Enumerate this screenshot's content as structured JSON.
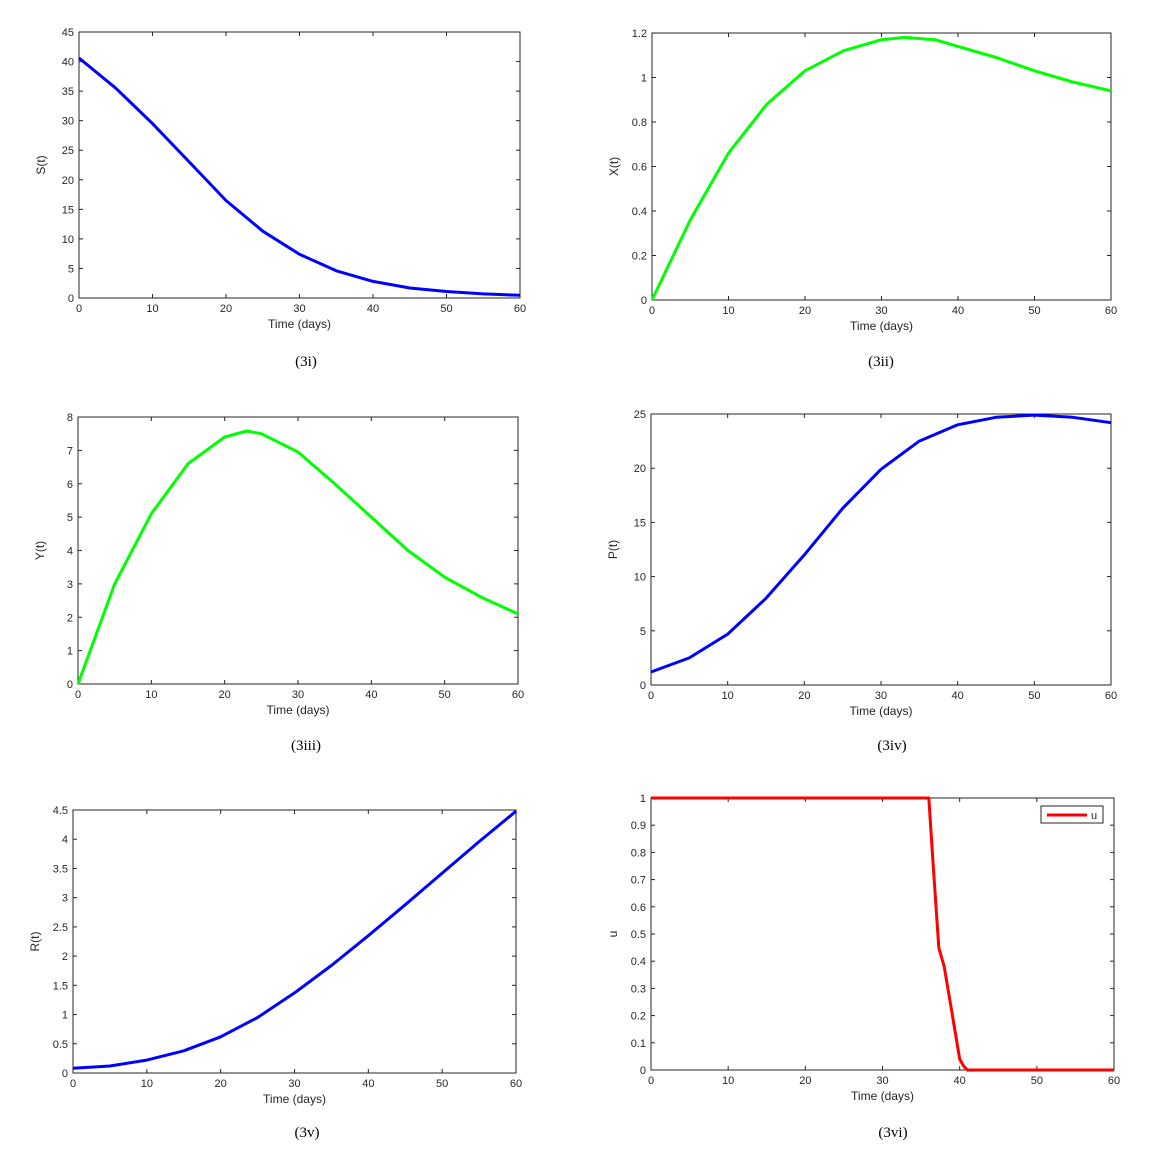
{
  "chart_data": [
    {
      "type": "line",
      "caption": "(3i)",
      "xlabel": "Time (days)",
      "ylabel": "S(t)",
      "xlim": [
        0,
        60
      ],
      "ylim": [
        0,
        45
      ],
      "xticks": [
        0,
        10,
        20,
        30,
        40,
        50,
        60
      ],
      "yticks": [
        0,
        5,
        10,
        15,
        20,
        25,
        30,
        35,
        40,
        45
      ],
      "grid": false,
      "series": [
        {
          "color": "#0000ff",
          "x": [
            0,
            5,
            10,
            15,
            20,
            25,
            30,
            35,
            40,
            45,
            50,
            55,
            60
          ],
          "y": [
            40.6,
            35.5,
            29.5,
            23.0,
            16.5,
            11.3,
            7.4,
            4.6,
            2.8,
            1.7,
            1.1,
            0.7,
            0.45
          ]
        }
      ]
    },
    {
      "type": "line",
      "caption": "(3ii)",
      "xlabel": "Time (days)",
      "ylabel": "X(t)",
      "xlim": [
        0,
        60
      ],
      "ylim": [
        0,
        1.2
      ],
      "xticks": [
        0,
        10,
        20,
        30,
        40,
        50,
        60
      ],
      "yticks": [
        0,
        0.2,
        0.4,
        0.6,
        0.8,
        1,
        1.2
      ],
      "grid": false,
      "series": [
        {
          "color": "#00ff00",
          "x": [
            0,
            5,
            10,
            15,
            20,
            25,
            30,
            33,
            37,
            40,
            45,
            50,
            55,
            60
          ],
          "y": [
            0,
            0.36,
            0.66,
            0.88,
            1.03,
            1.12,
            1.17,
            1.18,
            1.17,
            1.14,
            1.09,
            1.03,
            0.98,
            0.94
          ]
        }
      ]
    },
    {
      "type": "line",
      "caption": "(3iii)",
      "xlabel": "Time (days)",
      "ylabel": "Y(t)",
      "xlim": [
        0,
        60
      ],
      "ylim": [
        0,
        8
      ],
      "xticks": [
        0,
        10,
        20,
        30,
        40,
        50,
        60
      ],
      "yticks": [
        0,
        1,
        2,
        3,
        4,
        5,
        6,
        7,
        8
      ],
      "grid": false,
      "series": [
        {
          "color": "#00ff00",
          "x": [
            0,
            5,
            10,
            15,
            20,
            23,
            25,
            30,
            35,
            40,
            45,
            50,
            55,
            60
          ],
          "y": [
            0,
            3.0,
            5.1,
            6.6,
            7.4,
            7.58,
            7.5,
            6.95,
            6.0,
            5.0,
            4.0,
            3.2,
            2.6,
            2.1
          ]
        }
      ]
    },
    {
      "type": "line",
      "caption": "(3iv)",
      "xlabel": "Time (days)",
      "ylabel": "P(t)",
      "xlim": [
        0,
        60
      ],
      "ylim": [
        0,
        25
      ],
      "xticks": [
        0,
        10,
        20,
        30,
        40,
        50,
        60
      ],
      "yticks": [
        0,
        5,
        10,
        15,
        20,
        25
      ],
      "grid": false,
      "series": [
        {
          "color": "#0000ff",
          "x": [
            0,
            5,
            10,
            15,
            20,
            25,
            30,
            35,
            40,
            45,
            50,
            55,
            60
          ],
          "y": [
            1.2,
            2.5,
            4.7,
            8.0,
            12.0,
            16.3,
            19.9,
            22.5,
            24.0,
            24.7,
            24.9,
            24.7,
            24.2
          ]
        }
      ]
    },
    {
      "type": "line",
      "caption": "(3v)",
      "xlabel": "Time (days)",
      "ylabel": "R(t)",
      "xlim": [
        0,
        60
      ],
      "ylim": [
        0,
        4.5
      ],
      "xticks": [
        0,
        10,
        20,
        30,
        40,
        50,
        60
      ],
      "yticks": [
        0,
        0.5,
        1,
        1.5,
        2,
        2.5,
        3,
        3.5,
        4,
        4.5
      ],
      "grid": false,
      "series": [
        {
          "color": "#0000ff",
          "x": [
            0,
            5,
            10,
            15,
            20,
            25,
            30,
            35,
            40,
            45,
            50,
            55,
            60
          ],
          "y": [
            0.08,
            0.12,
            0.22,
            0.38,
            0.62,
            0.95,
            1.37,
            1.84,
            2.35,
            2.88,
            3.42,
            3.96,
            4.48
          ]
        }
      ]
    },
    {
      "type": "line",
      "caption": "(3vi)",
      "xlabel": "Time (days)",
      "ylabel": "u",
      "xlim": [
        0,
        60
      ],
      "ylim": [
        0,
        1
      ],
      "xticks": [
        0,
        10,
        20,
        30,
        40,
        50,
        60
      ],
      "yticks": [
        0,
        0.1,
        0.2,
        0.3,
        0.4,
        0.5,
        0.6,
        0.7,
        0.8,
        0.9,
        1
      ],
      "grid": false,
      "legend": "top-right",
      "series": [
        {
          "name": "u",
          "color": "#ff0000",
          "x": [
            0,
            36,
            36.5,
            37.3,
            38,
            39,
            40,
            40.5,
            41,
            45,
            60
          ],
          "y": [
            1,
            1,
            0.78,
            0.45,
            0.38,
            0.21,
            0.04,
            0.015,
            0,
            0,
            0
          ]
        }
      ]
    }
  ]
}
